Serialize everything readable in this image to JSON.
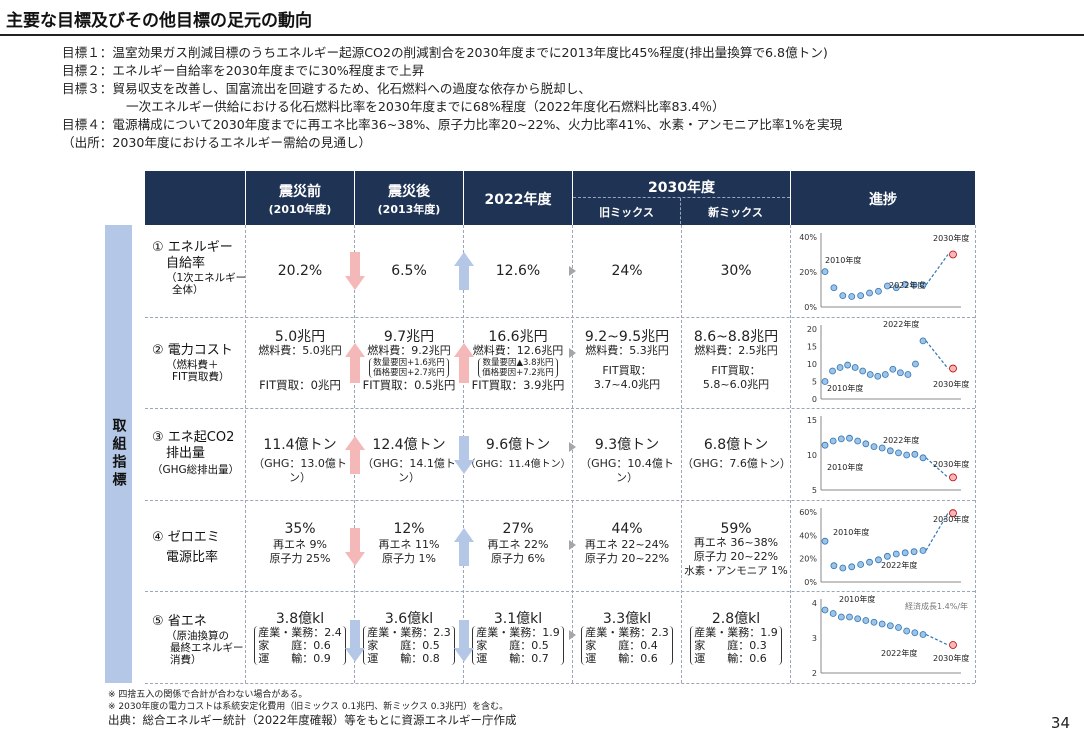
{
  "title": "主要な目標及びその他目標の足元の動向",
  "goals": [
    "目標１：温室効果ガス削減目標のうちエネルギー起源CO2の削減割合を2030年度までに2013年度比45%程度(排出量換算で6.8億トン)",
    "目標２：エネルギー自給率を2030年度までに30%程度まで上昇",
    "目標３：貿易収支を改善し、国富流出を回避するため、化石燃料への過度な依存から脱却し、",
    "一次エネルギー供給における化石燃料比率を2030年度までに68%程度（2022年度化石燃料比率83.4％）",
    "目標４：電源構成について2030年度までに再エネ比率36~38%、原子力比率20~22%、火力比率41%、水素・アンモニア比率1%を実現",
    "（出所：2030年度におけるエネルギー需給の見通し）"
  ],
  "side_label": "取組指標",
  "headers": {
    "pre": "震災前",
    "pre_sub": "(2010年度)",
    "post": "震災後",
    "post_sub": "(2013年度)",
    "y2022": "2022年度",
    "y2030": "2030年度",
    "old_mix": "旧ミックス",
    "new_mix": "新ミックス",
    "progress": "進捗"
  },
  "rows": [
    {
      "label1": "① エネルギー",
      "label2": "自給率",
      "sub1": "（1次エネルギー",
      "sub2": "全体）",
      "pre": "20.2%",
      "post": "6.5%",
      "y2022": "12.6%",
      "old": "24%",
      "new": "30%"
    },
    {
      "label1": "② 電力コスト",
      "sub1": "（燃料費＋",
      "sub2": "FIT買取費）",
      "pre": "5.0兆円",
      "pre_a": "燃料費：5.0兆円",
      "pre_b": "FIT買取：0兆円",
      "post": "9.7兆円",
      "post_a": "燃料費：9.2兆円",
      "post_n1": "数量要因+1.6兆円",
      "post_n2": "価格要因+2.7兆円",
      "post_b": "FIT買取：0.5兆円",
      "y2022": "16.6兆円",
      "y2022_a": "燃料費：12.6兆円",
      "y2022_n1": "数量要因▲3.8兆円",
      "y2022_n2": "価格要因+7.2兆円",
      "y2022_b": "FIT買取：3.9兆円",
      "old": "9.2~9.5兆円",
      "old_a": "燃料費：5.3兆円",
      "old_b": "FIT買取：",
      "old_c": "3.7~4.0兆円",
      "new": "8.6~8.8兆円",
      "new_a": "燃料費：2.5兆円",
      "new_b": "FIT買取：",
      "new_c": "5.8~6.0兆円"
    },
    {
      "label1": "③ エネ起CO2",
      "label2": "排出量",
      "sub1": "（GHG総排出量）",
      "pre": "11.4億トン",
      "pre_a": "（GHG：13.0億トン）",
      "post": "12.4億トン",
      "post_a": "（GHG：14.1億トン）",
      "y2022": "9.6億トン",
      "y2022_a": "（GHG：11.4億トン）",
      "old": "9.3億トン",
      "old_a": "（GHG：10.4億トン）",
      "new": "6.8億トン",
      "new_a": "（GHG：7.6億トン）"
    },
    {
      "label1": "④ ゼロエミ",
      "label2": "電源比率",
      "pre": "35%",
      "pre_a": "再エネ 9%",
      "pre_b": "原子力 25%",
      "post": "12%",
      "post_a": "再エネ 11%",
      "post_b": "原子力 1%",
      "y2022": "27%",
      "y2022_a": "再エネ 22%",
      "y2022_b": "原子力 6%",
      "old": "44%",
      "old_a": "再エネ 22~24%",
      "old_b": "原子力 20~22%",
      "new": "59%",
      "new_a": "再エネ 36~38%",
      "new_b": "原子力 20~22%",
      "new_c": "水素・アンモニア 1%"
    },
    {
      "label1": "⑤ 省エネ",
      "sub1": "（原油換算の",
      "sub2": "最終エネルギー",
      "sub3": "消費）",
      "pre": "3.8億kl",
      "pre_a": "産業・業務：2.4",
      "pre_b": "家　　庭：0.6",
      "pre_c": "運　　輸：0.9",
      "post": "3.6億kl",
      "post_a": "産業・業務：2.3",
      "post_b": "家　　庭：0.5",
      "post_c": "運　　輸：0.8",
      "y2022": "3.1億kl",
      "y2022_a": "産業・業務：1.9",
      "y2022_b": "家　　庭：0.5",
      "y2022_c": "運　　輸：0.7",
      "old": "3.3億kl",
      "old_a": "産業・業務：2.3",
      "old_b": "家　　庭：0.4",
      "old_c": "運　　輸：0.6",
      "new": "2.8億kl",
      "new_a": "産業・業務：1.9",
      "new_b": "家　　庭：0.3",
      "new_c": "運　　輸：0.6"
    }
  ],
  "footnotes": [
    "※ 四捨五入の関係で合計が合わない場合がある。",
    "※ 2030年度の電力コストは系統安定化費用（旧ミックス 0.1兆円、新ミックス 0.3兆円）を含む。"
  ],
  "source": "出典：総合エネルギー統計（2022年度確報）等をもとに資源エネルギー庁作成",
  "page_number": "34",
  "colors": {
    "header_bg": "#1f3354",
    "side_bg": "#b4c7e7",
    "arrow_down": "#f4b8b8",
    "arrow_up": "#b4c7e7",
    "point": "#9dc3e6",
    "target": "#f4b8b8",
    "trend": "#2e75b6"
  },
  "chart_data": [
    {
      "type": "scatter",
      "title": "",
      "ylim": [
        0,
        40
      ],
      "yticks": [
        "0%",
        "20%",
        "40%"
      ],
      "annotations": [
        "2010年度",
        "2022年度",
        "2030年度"
      ],
      "values": [
        20.2,
        11,
        6.5,
        6,
        6.5,
        8,
        9,
        12,
        11,
        13,
        12.5,
        12.6
      ],
      "target": 30
    },
    {
      "type": "scatter",
      "title": "",
      "ylim": [
        0,
        20
      ],
      "yticks": [
        "0",
        "5",
        "10",
        "15",
        "20"
      ],
      "annotations": [
        "2022年度",
        "2010年度",
        "2030年度"
      ],
      "values": [
        5,
        8,
        9,
        9.7,
        9,
        8,
        7,
        6.5,
        7,
        8.5,
        7.5,
        7,
        10,
        16.6
      ],
      "target": 8.7
    },
    {
      "type": "scatter",
      "title": "",
      "ylim": [
        5,
        15
      ],
      "yticks": [
        "5",
        "10",
        "15"
      ],
      "annotations": [
        "2022年度",
        "2010年度",
        "2030年度"
      ],
      "values": [
        11.4,
        12,
        12.3,
        12.4,
        12,
        11.6,
        11.2,
        11,
        10.6,
        10.3,
        10,
        10.1,
        9.6
      ],
      "target": 6.8
    },
    {
      "type": "scatter",
      "title": "",
      "ylim": [
        0,
        60
      ],
      "yticks": [
        "0%",
        "20%",
        "40%",
        "60%"
      ],
      "annotations": [
        "2010年度",
        "2022年度",
        "2030年度"
      ],
      "values": [
        35,
        14,
        12,
        13,
        15,
        17,
        19,
        22,
        24,
        25,
        26,
        27
      ],
      "target": 59
    },
    {
      "type": "scatter",
      "title": "",
      "ylim": [
        2,
        4
      ],
      "yticks": [
        "2",
        "3",
        "4"
      ],
      "annotations": [
        "2010年度",
        "経済成長1.4%/年",
        "2022年度",
        "2030年度"
      ],
      "values": [
        3.8,
        3.7,
        3.6,
        3.6,
        3.55,
        3.5,
        3.45,
        3.4,
        3.35,
        3.3,
        3.2,
        3.15,
        3.1
      ],
      "target": 2.8
    }
  ]
}
